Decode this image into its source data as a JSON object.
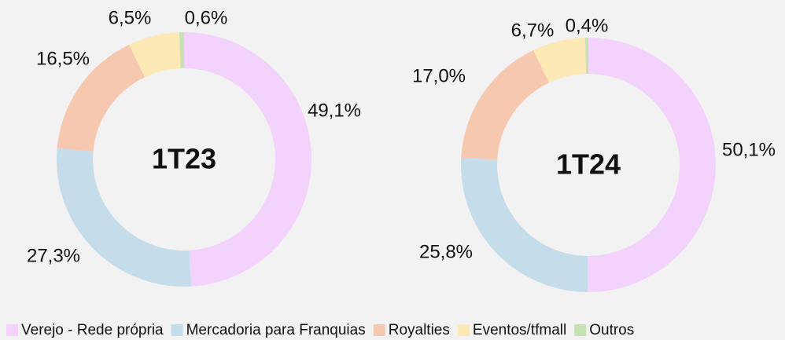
{
  "chart_data": [
    {
      "type": "pie",
      "title": "1T23",
      "categories": [
        "Verejo - Rede própria",
        "Mercadoria para Franquias",
        "Royalties",
        "Eventos/tfmall",
        "Outros"
      ],
      "values": [
        49.1,
        27.3,
        16.5,
        6.5,
        0.6
      ],
      "value_labels": [
        "49,1%",
        "27,3%",
        "16,5%",
        "6,5%",
        "0,6%"
      ],
      "colors": [
        "#f3d2fb",
        "#c5dcea",
        "#f7c8b0",
        "#fde9b5",
        "#c6e2b2"
      ],
      "legend": "bottom"
    },
    {
      "type": "pie",
      "title": "1T24",
      "categories": [
        "Verejo - Rede própria",
        "Mercadoria para Franquias",
        "Royalties",
        "Eventos/tfmall",
        "Outros"
      ],
      "values": [
        50.1,
        25.8,
        17.0,
        6.7,
        0.4
      ],
      "value_labels": [
        "50,1%",
        "25,8%",
        "17,0%",
        "6,7%",
        "0,4%"
      ],
      "colors": [
        "#f3d2fb",
        "#c5dcea",
        "#f7c8b0",
        "#fde9b5",
        "#c6e2b2"
      ],
      "legend": "bottom"
    }
  ]
}
